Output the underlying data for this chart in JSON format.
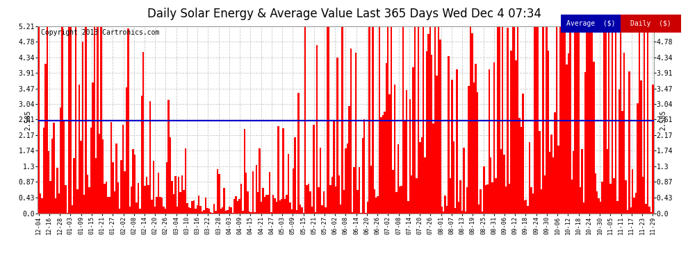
{
  "title": "Daily Solar Energy & Average Value Last 365 Days Wed Dec 4 07:34",
  "copyright": "Copyright 2013 Cartronics.com",
  "average_value": 2.585,
  "ylim": [
    0,
    5.21
  ],
  "yticks": [
    0.0,
    0.43,
    0.87,
    1.3,
    1.74,
    2.17,
    2.61,
    3.04,
    3.47,
    3.91,
    4.34,
    4.78,
    5.21
  ],
  "bar_color": "#FF0000",
  "avg_line_color": "#0000CC",
  "background_color": "#FFFFFF",
  "plot_bg_color": "#FFFFFF",
  "grid_color": "#BBBBBB",
  "title_fontsize": 12,
  "avg_label": "2.585",
  "legend_avg_label": "Average  ($)",
  "legend_daily_label": "Daily  ($)",
  "legend_avg_bg": "#0000AA",
  "legend_daily_bg": "#CC0000",
  "legend_text_color": "#FFFFFF",
  "xtick_labels": [
    "12-04",
    "12-16",
    "12-28",
    "01-03",
    "01-09",
    "01-15",
    "01-21",
    "01-27",
    "02-02",
    "02-08",
    "02-14",
    "02-20",
    "02-26",
    "03-04",
    "03-10",
    "03-16",
    "03-22",
    "03-28",
    "04-03",
    "04-09",
    "04-15",
    "04-21",
    "04-27",
    "05-03",
    "05-09",
    "05-15",
    "05-21",
    "05-27",
    "06-02",
    "06-08",
    "06-14",
    "06-20",
    "06-26",
    "07-02",
    "07-08",
    "07-14",
    "07-20",
    "07-26",
    "08-01",
    "08-07",
    "08-13",
    "08-19",
    "08-25",
    "08-31",
    "09-06",
    "09-12",
    "09-18",
    "09-24",
    "09-30",
    "10-06",
    "10-12",
    "10-18",
    "10-24",
    "10-30",
    "11-05",
    "11-11",
    "11-17",
    "11-23",
    "11-29"
  ],
  "num_days": 365
}
